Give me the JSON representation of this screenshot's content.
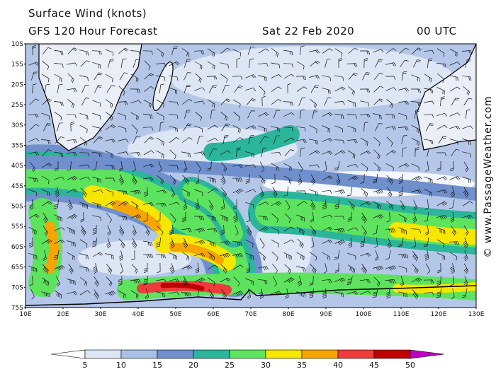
{
  "header": {
    "title": "Surface Wind (knots)",
    "subtitle": "GFS 120 Hour Forecast",
    "date": "Sat 22 Feb 2020",
    "time": "00 UTC"
  },
  "map": {
    "lat_labels": [
      "10S",
      "15S",
      "20S",
      "25S",
      "30S",
      "35S",
      "40S",
      "45S",
      "50S",
      "55S",
      "60S",
      "65S",
      "70S",
      "75S"
    ],
    "lon_labels": [
      "10E",
      "20E",
      "30E",
      "40E",
      "50E",
      "60E",
      "70E",
      "80E",
      "90E",
      "100E",
      "110E",
      "120E",
      "130E"
    ]
  },
  "colorbar": {
    "labels": [
      "5",
      "10",
      "15",
      "20",
      "25",
      "30",
      "35",
      "40",
      "45",
      "50"
    ],
    "colors": [
      "#ffffff",
      "#dce6f5",
      "#a9bfe3",
      "#6f90cc",
      "#2bb59a",
      "#5ee35e",
      "#f6e600",
      "#f7a500",
      "#ee3b3b",
      "#c00000",
      "#c000c0"
    ]
  },
  "watermark": "© www.PassageWeather.com"
}
